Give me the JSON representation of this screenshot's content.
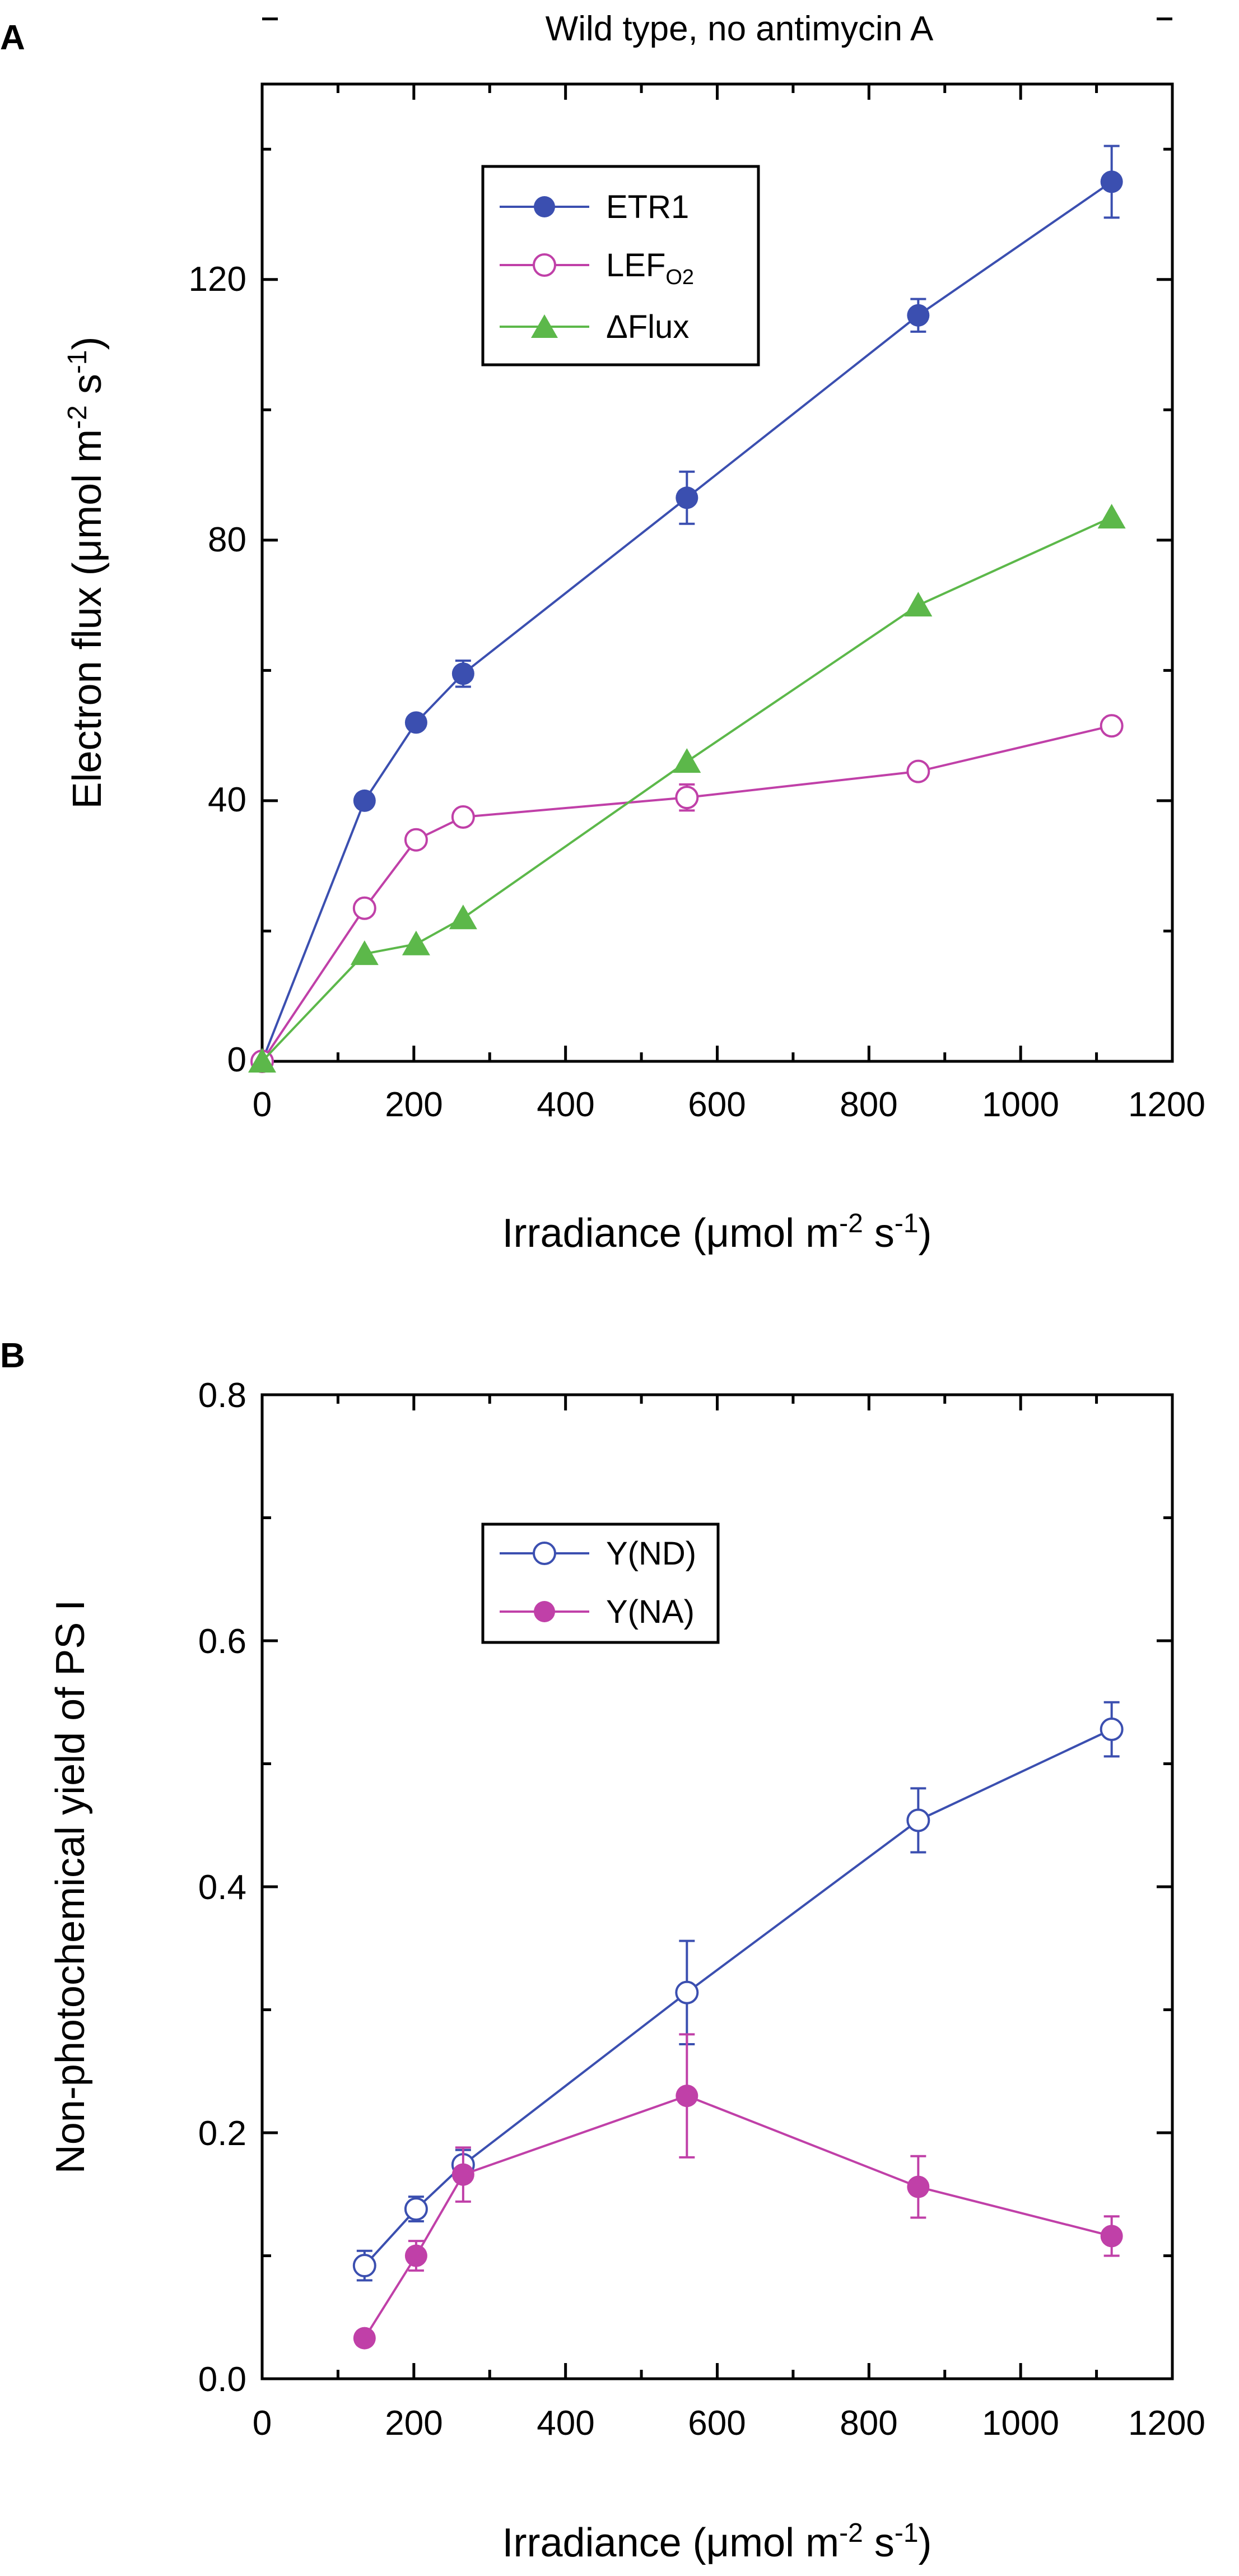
{
  "chart_data": [
    {
      "panel": "A",
      "type": "line",
      "title": "Wild type, no antimycin A",
      "xlabel": "Irradiance  (μmol m^-2 s^-1)",
      "ylabel": "Electron flux  (μmol m^-2 s^-1)",
      "xlim": [
        0,
        1200
      ],
      "ylim": [
        0,
        150
      ],
      "xticks": [
        0,
        200,
        400,
        600,
        800,
        1000,
        1200
      ],
      "yticks": [
        0,
        40,
        80,
        120
      ],
      "legend_position": "top-left",
      "series": [
        {
          "name": "ETR1",
          "color": "#3b4fb0",
          "marker": "filled-circle",
          "x": [
            0,
            135,
            203,
            265,
            560,
            865,
            1120
          ],
          "y": [
            0,
            40,
            52,
            59.5,
            86.5,
            114.5,
            135
          ],
          "err": [
            0,
            0,
            0,
            2,
            4,
            2.5,
            5.5
          ]
        },
        {
          "name": "LEFO2",
          "color": "#c040a8",
          "marker": "open-circle",
          "x": [
            0,
            135,
            203,
            265,
            560,
            865,
            1120
          ],
          "y": [
            0,
            23.5,
            34,
            37.5,
            40.5,
            44.5,
            51.5
          ],
          "err": [
            0,
            0,
            0,
            0,
            2,
            0,
            0
          ]
        },
        {
          "name": "ΔFlux",
          "color": "#5cb84a",
          "marker": "filled-triangle",
          "x": [
            0,
            135,
            203,
            265,
            560,
            865,
            1120
          ],
          "y": [
            0,
            16.5,
            18,
            22,
            46,
            70,
            83.5
          ],
          "err": [
            0,
            0,
            0,
            0,
            0,
            0,
            0
          ]
        }
      ]
    },
    {
      "panel": "B",
      "type": "line",
      "title": "",
      "xlabel": "Irradiance  (μmol m^-2 s^-1)",
      "ylabel": "Non-photochemical yield of PS I",
      "xlim": [
        0,
        1200
      ],
      "ylim": [
        0,
        0.8
      ],
      "xticks": [
        0,
        200,
        400,
        600,
        800,
        1000,
        1200
      ],
      "yticks": [
        0.0,
        0.2,
        0.4,
        0.6,
        0.8
      ],
      "legend_position": "top-left",
      "series": [
        {
          "name": "Y(ND)",
          "color": "#3b4fb0",
          "marker": "open-circle",
          "x": [
            135,
            203,
            265,
            560,
            865,
            1120
          ],
          "y": [
            0.092,
            0.138,
            0.174,
            0.314,
            0.454,
            0.528
          ],
          "err": [
            0.012,
            0.01,
            0.012,
            0.042,
            0.026,
            0.022
          ]
        },
        {
          "name": "Y(NA)",
          "color": "#c040a8",
          "marker": "filled-circle",
          "x": [
            135,
            203,
            265,
            560,
            865,
            1120
          ],
          "y": [
            0.033,
            0.1,
            0.166,
            0.23,
            0.156,
            0.116
          ],
          "err": [
            0,
            0.012,
            0.022,
            0.05,
            0.025,
            0.016
          ]
        }
      ]
    }
  ]
}
